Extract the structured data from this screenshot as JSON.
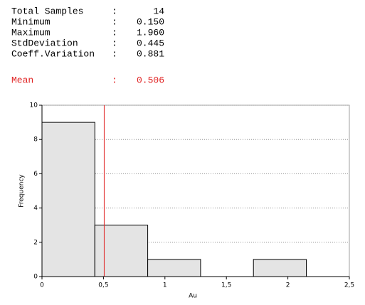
{
  "stats": {
    "separator": ":",
    "rows": [
      {
        "label": "Total Samples",
        "value": "14"
      },
      {
        "label": "Minimum",
        "value": "0.150"
      },
      {
        "label": "Maximum",
        "value": "1.960"
      },
      {
        "label": "StdDeviation",
        "value": "0.445"
      },
      {
        "label": "Coeff.Variation",
        "value": "0.881"
      }
    ],
    "mean": {
      "label": "Mean",
      "value": "0.506"
    }
  },
  "chart_data": {
    "type": "histogram",
    "bins": [
      0,
      0.43,
      0.86,
      1.29,
      1.72,
      2.15
    ],
    "values": [
      9,
      3,
      1,
      0,
      1
    ],
    "color": "#e4e4e4",
    "xlim": [
      0,
      2.5
    ],
    "ylim": [
      0,
      10
    ],
    "xticks": [
      0,
      {
        "value": 0.5,
        "label": "0,5"
      },
      1,
      {
        "value": 1.5,
        "label": "1,5"
      },
      2,
      {
        "value": 2.5,
        "label": "2,5"
      }
    ],
    "yticks": [
      0,
      2,
      4,
      6,
      8,
      10
    ],
    "xlabel": "Au",
    "ylabel": "Frequency",
    "grid": true,
    "mean_line": 0.506,
    "mean_color": "#e02020"
  }
}
